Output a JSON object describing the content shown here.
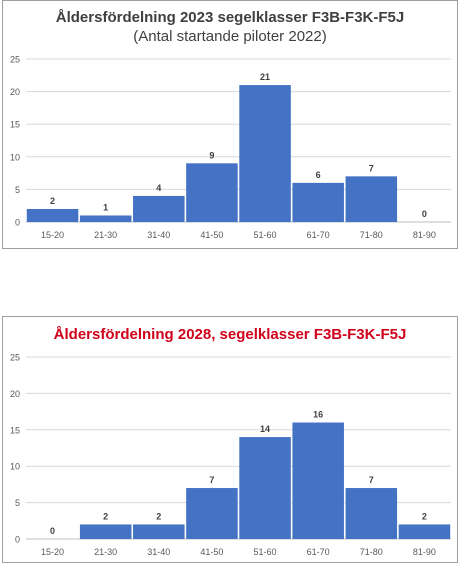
{
  "chart_data": [
    {
      "type": "bar",
      "title": "Åldersfördelning 2023 segelklasser F3B-F3K-F5J",
      "subtitle": "(Antal startande piloter 2022)",
      "title_color": "#404040",
      "categories": [
        "15-20",
        "21-30",
        "31-40",
        "41-50",
        "51-60",
        "61-70",
        "71-80",
        "81-90"
      ],
      "values": [
        2,
        1,
        4,
        9,
        21,
        6,
        7,
        0
      ],
      "yticks": [
        0,
        5,
        10,
        15,
        20,
        25
      ],
      "ylim": [
        0,
        25
      ],
      "bar_color": "#4472c4",
      "grid": true,
      "data_labels": true
    },
    {
      "type": "bar",
      "title": "Åldersfördelning 2028, segelklasser F3B-F3K-F5J",
      "title_color": "#d0021b",
      "categories": [
        "15-20",
        "21-30",
        "31-40",
        "41-50",
        "51-60",
        "61-70",
        "71-80",
        "81-90"
      ],
      "values": [
        0,
        2,
        2,
        7,
        14,
        16,
        7,
        2
      ],
      "yticks": [
        0,
        5,
        10,
        15,
        20,
        25
      ],
      "ylim": [
        0,
        25
      ],
      "bar_color": "#4472c4",
      "grid": true,
      "data_labels": true
    }
  ]
}
